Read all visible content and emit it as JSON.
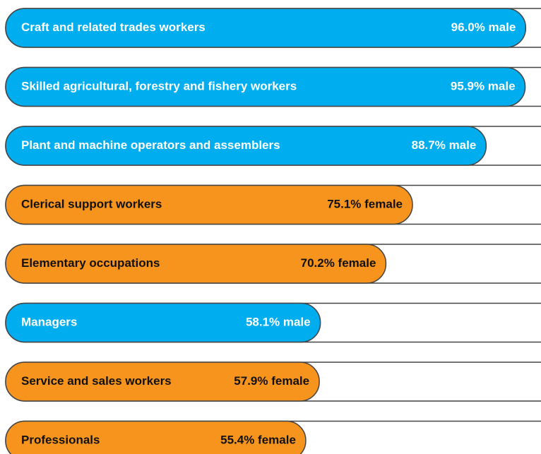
{
  "chart_data": {
    "type": "bar",
    "orientation": "horizontal",
    "categories": [
      "Craft and related trades workers",
      "Skilled agricultural, forestry and fishery workers",
      "Plant and machine operators and assemblers",
      "Clerical support workers",
      "Elementary occupations",
      "Managers",
      "Service and sales workers",
      "Professionals"
    ],
    "values": [
      96.0,
      95.9,
      88.7,
      75.1,
      70.2,
      58.1,
      57.9,
      55.4
    ],
    "value_labels": [
      "96.0% male",
      "95.9% male",
      "88.7% male",
      "75.1% female",
      "70.2% female",
      "58.1% male",
      "57.9% female",
      "55.4% female"
    ],
    "colors": [
      "#00aeef",
      "#00aeef",
      "#00aeef",
      "#f7941d",
      "#f7941d",
      "#00aeef",
      "#f7941d",
      "#f7941d"
    ],
    "text_colors": [
      "#ffffff",
      "#ffffff",
      "#ffffff",
      "#111111",
      "#111111",
      "#ffffff",
      "#111111",
      "#111111"
    ],
    "xlim": [
      0,
      100
    ]
  }
}
